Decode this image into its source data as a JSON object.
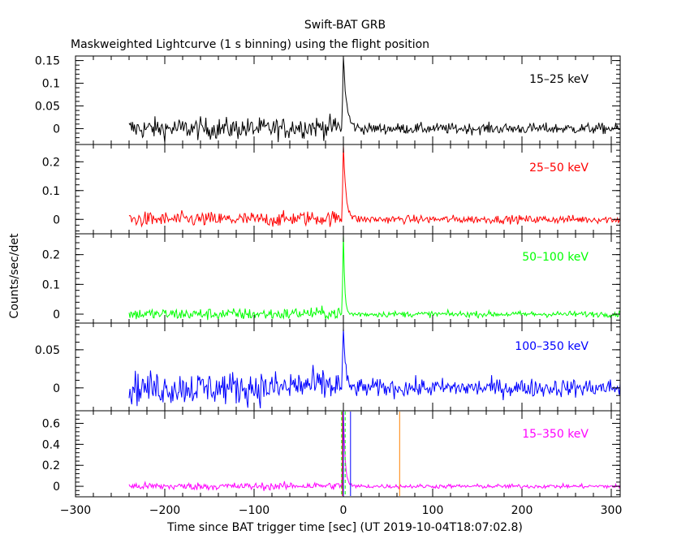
{
  "title": "Swift-BAT GRB",
  "subtitle": "Maskweighted Lightcurve (1 s binning) using the flight position",
  "chart_data": {
    "type": "line",
    "xlabel": "Time since BAT trigger time [sec] (UT 2019-10-04T18:07:02.8)",
    "ylabel": "Counts/sec/det",
    "xlim": [
      -300,
      310
    ],
    "x_ticks": [
      -300,
      -200,
      -100,
      0,
      100,
      200,
      300
    ],
    "x_tick_labels": [
      "−300",
      "−200",
      "−100",
      "0",
      "100",
      "200",
      "300"
    ],
    "data_start": -240,
    "data_end": 310,
    "trigger_time": 0,
    "panels": [
      {
        "band": "15–25 keV",
        "color": "#000000",
        "ylim": [
          -0.035,
          0.16
        ],
        "yticks": [
          0,
          0.05,
          0.1,
          0.15
        ],
        "ytick_labels": [
          "0",
          "0.05",
          "0.1",
          "0.15"
        ],
        "noise_pre": 0.012,
        "noise_post": 0.006,
        "peak": 0.16,
        "peak_time": 0,
        "decay": 3.5
      },
      {
        "band": "25–50 keV",
        "color": "#ff0000",
        "ylim": [
          -0.05,
          0.26
        ],
        "yticks": [
          0,
          0.1,
          0.2
        ],
        "ytick_labels": [
          "0",
          "0.1",
          "0.2"
        ],
        "noise_pre": 0.013,
        "noise_post": 0.007,
        "peak": 0.26,
        "peak_time": 0,
        "decay": 3
      },
      {
        "band": "50–100 keV",
        "color": "#00ff00",
        "ylim": [
          -0.03,
          0.27
        ],
        "yticks": [
          0,
          0.1,
          0.2
        ],
        "ytick_labels": [
          "0",
          "0.1",
          "0.2"
        ],
        "noise_pre": 0.01,
        "noise_post": 0.005,
        "peak": 0.27,
        "peak_time": 0,
        "decay": 1.5
      },
      {
        "band": "100–350 keV",
        "color": "#0000ff",
        "ylim": [
          -0.03,
          0.085
        ],
        "yticks": [
          0,
          0.05
        ],
        "ytick_labels": [
          "0",
          "0.05"
        ],
        "noise_pre": 0.011,
        "noise_post": 0.006,
        "peak": 0.085,
        "peak_time": 0,
        "decay": 2
      },
      {
        "band": "15–350 keV",
        "color": "#ff00ff",
        "ylim": [
          -0.1,
          0.72
        ],
        "yticks": [
          0,
          0.2,
          0.4,
          0.6
        ],
        "ytick_labels": [
          "0",
          "0.2",
          "0.4",
          "0.6"
        ],
        "noise_pre": 0.018,
        "noise_post": 0.01,
        "peak": 0.72,
        "peak_time": 0,
        "decay": 2
      }
    ],
    "markers": [
      {
        "x": -1,
        "color": "#ff0000",
        "style": "solid"
      },
      {
        "x": 0,
        "color": "#0000ff",
        "style": "solid"
      },
      {
        "x": -2,
        "color": "#00ff00",
        "style": "dashed"
      },
      {
        "x": 2,
        "color": "#00ff00",
        "style": "dashed"
      },
      {
        "x": 8,
        "color": "#0000ff",
        "style": "solid"
      },
      {
        "x": 63,
        "color": "#ff8000",
        "style": "solid"
      }
    ]
  }
}
